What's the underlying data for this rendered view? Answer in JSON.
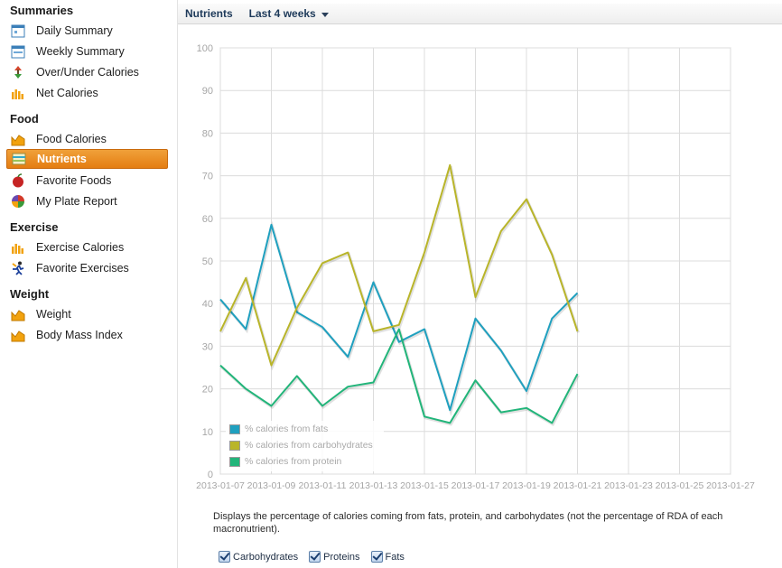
{
  "sidebar": {
    "sections": [
      {
        "title": "Summaries",
        "items": [
          {
            "label": "Daily Summary",
            "icon": "calendar-icon"
          },
          {
            "label": "Weekly Summary",
            "icon": "week-calendar-icon"
          },
          {
            "label": "Over/Under Calories",
            "icon": "up-down-arrows-icon"
          },
          {
            "label": "Net Calories",
            "icon": "bar-chart-icon"
          }
        ]
      },
      {
        "title": "Food",
        "items": [
          {
            "label": "Food Calories",
            "icon": "area-chart-icon"
          },
          {
            "label": "Nutrients",
            "icon": "nutrients-chart-icon",
            "active": true
          },
          {
            "label": "Favorite Foods",
            "icon": "apple-icon"
          },
          {
            "label": "My Plate Report",
            "icon": "plate-pie-icon"
          }
        ]
      },
      {
        "title": "Exercise",
        "items": [
          {
            "label": "Exercise Calories",
            "icon": "bar-chart-icon"
          },
          {
            "label": "Favorite Exercises",
            "icon": "runner-icon"
          }
        ]
      },
      {
        "title": "Weight",
        "items": [
          {
            "label": "Weight",
            "icon": "area-chart-icon"
          },
          {
            "label": "Body Mass Index",
            "icon": "area-chart-icon"
          }
        ]
      }
    ]
  },
  "toolbar": {
    "title": "Nutrients",
    "range": "Last 4 weeks"
  },
  "chart_data": {
    "type": "line",
    "x": [
      "2013-01-07",
      "2013-01-08",
      "2013-01-09",
      "2013-01-10",
      "2013-01-11",
      "2013-01-12",
      "2013-01-13",
      "2013-01-14",
      "2013-01-15",
      "2013-01-16",
      "2013-01-17",
      "2013-01-18",
      "2013-01-19",
      "2013-01-20",
      "2013-01-21",
      "2013-01-22",
      "2013-01-23",
      "2013-01-24",
      "2013-01-25",
      "2013-01-26",
      "2013-01-27"
    ],
    "x_ticks": [
      "2013-01-07",
      "2013-01-09",
      "2013-01-11",
      "2013-01-13",
      "2013-01-15",
      "2013-01-17",
      "2013-01-19",
      "2013-01-21",
      "2013-01-23",
      "2013-01-25",
      "2013-01-27"
    ],
    "y_ticks": [
      0,
      10,
      20,
      30,
      40,
      50,
      60,
      70,
      80,
      90,
      100
    ],
    "ylim": [
      0,
      100
    ],
    "grid": true,
    "legend_position": "bottom-left",
    "series": [
      {
        "name": "% calories from fats",
        "color": "#1fa0bf",
        "values": [
          41,
          34,
          58.5,
          38,
          34.5,
          27.5,
          45,
          31,
          34,
          15,
          36.5,
          29,
          19.5,
          36.5,
          42.5,
          null,
          null,
          null,
          null,
          null,
          null
        ]
      },
      {
        "name": "% calories from carbohydrates",
        "color": "#b9b52a",
        "values": [
          33.5,
          46,
          25.5,
          39,
          49.5,
          52,
          33.5,
          35,
          52,
          72.5,
          41.5,
          57,
          64.5,
          51.5,
          33.5,
          null,
          null,
          null,
          null,
          null,
          null
        ]
      },
      {
        "name": "% calories from protein",
        "color": "#22b57a",
        "values": [
          25.5,
          20,
          16,
          23,
          16,
          20.5,
          21.5,
          34,
          13.5,
          12,
          22,
          14.5,
          15.5,
          12,
          23.5,
          null,
          null,
          null,
          null,
          null,
          null
        ]
      }
    ]
  },
  "description": "Displays the percentage of calories coming from fats, protein, and carbohydates (not the percentage of RDA of each macronutrient).",
  "checkboxes": [
    {
      "label": "Carbohydrates",
      "checked": true
    },
    {
      "label": "Proteins",
      "checked": true
    },
    {
      "label": "Fats",
      "checked": true
    }
  ]
}
